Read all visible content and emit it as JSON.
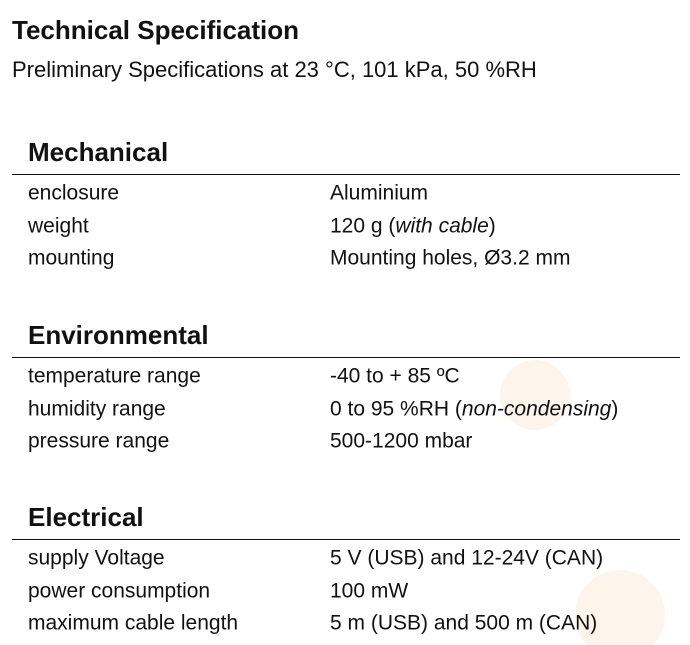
{
  "header": {
    "title": "Technical Specification",
    "subtitle": "Preliminary Specifications at 23 °C, 101 kPa, 50 %RH"
  },
  "sections": [
    {
      "title": "Mechanical",
      "rows": [
        {
          "label": "enclosure",
          "value": [
            "Aluminium"
          ]
        },
        {
          "label": "weight",
          "value": [
            "120 g (",
            {
              "italic": "with cable"
            },
            ")"
          ]
        },
        {
          "label": "mounting",
          "value": [
            "Mounting holes, Ø3.2 mm"
          ]
        }
      ]
    },
    {
      "title": "Environmental",
      "rows": [
        {
          "label": "temperature range",
          "value": [
            "-40 to + 85 ºC"
          ]
        },
        {
          "label": "humidity range",
          "value": [
            "0 to 95 %RH (",
            {
              "italic": "non-condensing"
            },
            ")"
          ]
        },
        {
          "label": "pressure range",
          "value": [
            "500-1200 mbar"
          ]
        }
      ]
    },
    {
      "title": "Electrical",
      "rows": [
        {
          "label": "supply Voltage",
          "value": [
            "5 V (USB) and 12-24V (CAN)"
          ]
        },
        {
          "label": "power consumption",
          "value": [
            "100 mW"
          ]
        },
        {
          "label": "maximum cable length",
          "value": [
            "5 m (USB) and 500 m (CAN)"
          ]
        }
      ]
    }
  ]
}
